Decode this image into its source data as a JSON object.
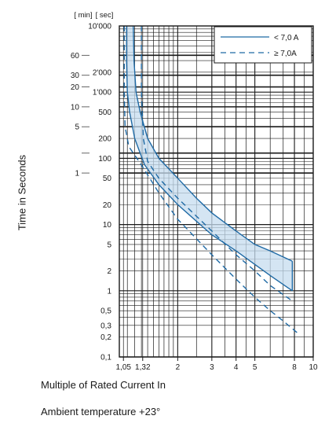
{
  "chart_data": {
    "type": "line",
    "title": "",
    "xlabel": "Multiple of Rated Current In",
    "ylabel": "Time in Seconds",
    "note": "Ambient temperature +23°",
    "x_scale": "log",
    "y_scale": "log",
    "xlim": [
      1,
      10
    ],
    "ylim_sec": [
      0.1,
      10000
    ],
    "grid": true,
    "legend_position": "top-right",
    "x_ticks": [
      {
        "v": 1.05,
        "label": "1,05"
      },
      {
        "v": 1.32,
        "label": "1,32"
      },
      {
        "v": 2,
        "label": "2"
      },
      {
        "v": 3,
        "label": "3"
      },
      {
        "v": 4,
        "label": "4"
      },
      {
        "v": 5,
        "label": "5"
      },
      {
        "v": 8,
        "label": "8"
      },
      {
        "v": 10,
        "label": "10"
      }
    ],
    "y_units_header": [
      "[ min]",
      "[ sec]"
    ],
    "y_ticks_sec": [
      {
        "v": 10000,
        "label": "10'000"
      },
      {
        "v": 2000,
        "label": "2'000"
      },
      {
        "v": 1000,
        "label": "1'000"
      },
      {
        "v": 500,
        "label": "500"
      },
      {
        "v": 200,
        "label": "200"
      },
      {
        "v": 100,
        "label": "100"
      },
      {
        "v": 50,
        "label": "50"
      },
      {
        "v": 20,
        "label": "20"
      },
      {
        "v": 10,
        "label": "10"
      },
      {
        "v": 5,
        "label": "5"
      },
      {
        "v": 2,
        "label": "2"
      },
      {
        "v": 1,
        "label": "1"
      },
      {
        "v": 0.5,
        "label": "0,5"
      },
      {
        "v": 0.3,
        "label": "0,3"
      },
      {
        "v": 0.2,
        "label": "0,2"
      },
      {
        "v": 0.1,
        "label": "0,1"
      }
    ],
    "y_ticks_min": [
      {
        "v": 60,
        "label": "60"
      },
      {
        "v": 30,
        "label": "30"
      },
      {
        "v": 20,
        "label": "20"
      },
      {
        "v": 10,
        "label": "10"
      },
      {
        "v": 5,
        "label": "5"
      },
      {
        "v": 2,
        "label": ""
      },
      {
        "v": 1,
        "label": "1"
      }
    ],
    "legend": [
      {
        "label": "< 7,0 A",
        "style": "solid"
      },
      {
        "label": "≥ 7,0A",
        "style": "dashed"
      }
    ],
    "series": [
      {
        "label": "< 7,0 A",
        "style": "solid",
        "fill": true,
        "upper": [
          {
            "x": 1.18,
            "y": 10000
          },
          {
            "x": 1.19,
            "y": 3000
          },
          {
            "x": 1.22,
            "y": 1000
          },
          {
            "x": 1.28,
            "y": 500
          },
          {
            "x": 1.4,
            "y": 200
          },
          {
            "x": 1.6,
            "y": 100
          },
          {
            "x": 2.0,
            "y": 50
          },
          {
            "x": 2.5,
            "y": 25
          },
          {
            "x": 3.0,
            "y": 15
          },
          {
            "x": 4.0,
            "y": 8
          },
          {
            "x": 5.0,
            "y": 5
          },
          {
            "x": 6.0,
            "y": 4
          },
          {
            "x": 7.8,
            "y": 2.8
          }
        ],
        "lower": [
          {
            "x": 1.09,
            "y": 10000
          },
          {
            "x": 1.09,
            "y": 3000
          },
          {
            "x": 1.1,
            "y": 1000
          },
          {
            "x": 1.13,
            "y": 500
          },
          {
            "x": 1.2,
            "y": 200
          },
          {
            "x": 1.28,
            "y": 120
          },
          {
            "x": 1.35,
            "y": 80
          },
          {
            "x": 1.6,
            "y": 40
          },
          {
            "x": 2.0,
            "y": 20
          },
          {
            "x": 3.0,
            "y": 7
          },
          {
            "x": 4.0,
            "y": 4
          },
          {
            "x": 5.0,
            "y": 2.5
          },
          {
            "x": 6.0,
            "y": 1.7
          },
          {
            "x": 7.8,
            "y": 1.0
          }
        ]
      },
      {
        "label": "≥ 7,0A",
        "style": "dashed",
        "fill": false,
        "upper": [
          {
            "x": 1.3,
            "y": 10000
          },
          {
            "x": 1.3,
            "y": 1000
          },
          {
            "x": 1.33,
            "y": 200
          },
          {
            "x": 1.4,
            "y": 90
          },
          {
            "x": 1.6,
            "y": 50
          },
          {
            "x": 2.0,
            "y": 25
          },
          {
            "x": 3.0,
            "y": 8
          },
          {
            "x": 4.0,
            "y": 3.5
          },
          {
            "x": 5.0,
            "y": 2
          },
          {
            "x": 6.0,
            "y": 1.2
          },
          {
            "x": 7.8,
            "y": 0.7
          }
        ],
        "lower": [
          {
            "x": 1.06,
            "y": 10000
          },
          {
            "x": 1.06,
            "y": 1000
          },
          {
            "x": 1.07,
            "y": 300
          },
          {
            "x": 1.12,
            "y": 150
          },
          {
            "x": 1.3,
            "y": 80
          },
          {
            "x": 1.6,
            "y": 30
          },
          {
            "x": 2.0,
            "y": 12
          },
          {
            "x": 3.0,
            "y": 3.5
          },
          {
            "x": 4.0,
            "y": 1.5
          },
          {
            "x": 5.0,
            "y": 0.8
          },
          {
            "x": 6.0,
            "y": 0.5
          },
          {
            "x": 7.0,
            "y": 0.35
          },
          {
            "x": 8.3,
            "y": 0.23
          }
        ]
      }
    ],
    "colors": {
      "curve": "#1f6aa5",
      "band_fill": "#c6dcef",
      "grid": "#1a1a1a",
      "text": "#1a1a1a"
    }
  }
}
